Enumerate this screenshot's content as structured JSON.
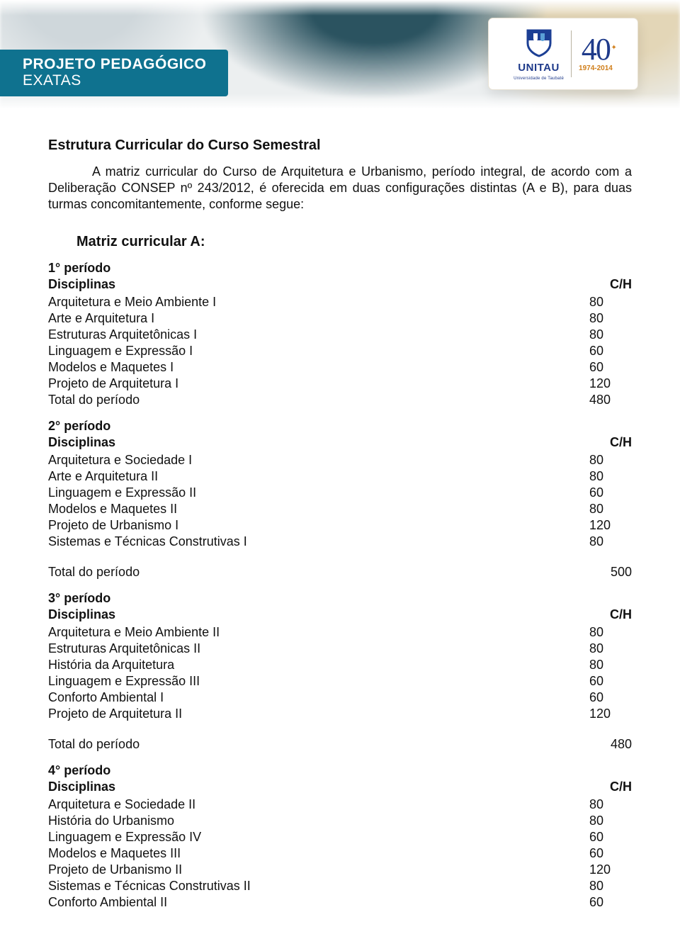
{
  "banner": {
    "title_line1": "PROJETO PEDAGÓGICO",
    "title_line2": "EXATAS",
    "title_bg": "#0f728f",
    "logo": {
      "word": "UNITAU",
      "sub": "Universidade de Taubaté",
      "shield_blue": "#1c3f94",
      "forty": "40",
      "years": "1974-2014",
      "accent": "#d07e1a"
    }
  },
  "doc": {
    "heading": "Estrutura Curricular do Curso Semestral",
    "paragraph": "A matriz curricular do Curso de Arquitetura e Urbanismo, período integral, de acordo com a Deliberação CONSEP nº 243/2012, é oferecida em duas configurações distintas (A e B), para duas turmas concomitantemente, conforme segue:",
    "matrix_title": "Matriz curricular A:",
    "col_label_disc": "Disciplinas",
    "col_label_ch": "C/H",
    "total_label": "Total do período",
    "periods": [
      {
        "title": "1° período",
        "rows": [
          {
            "name": "Arquitetura e Meio Ambiente I",
            "ch": "80"
          },
          {
            "name": "Arte e Arquitetura I",
            "ch": "80"
          },
          {
            "name": "Estruturas Arquitetônicas I",
            "ch": "80"
          },
          {
            "name": "Linguagem e Expressão I",
            "ch": "60"
          },
          {
            "name": "Modelos e Maquetes I",
            "ch": "60"
          },
          {
            "name": "Projeto de Arquitetura I",
            "ch": "120"
          }
        ],
        "total": "480",
        "total_inline": true
      },
      {
        "title": "2° período",
        "rows": [
          {
            "name": "Arquitetura e Sociedade I",
            "ch": "80"
          },
          {
            "name": "Arte e Arquitetura II",
            "ch": "80"
          },
          {
            "name": "Linguagem e Expressão II",
            "ch": "60"
          },
          {
            "name": "Modelos e Maquetes II",
            "ch": "80"
          },
          {
            "name": "Projeto de Urbanismo I",
            "ch": "120"
          },
          {
            "name": "Sistemas e Técnicas Construtivas I",
            "ch": "80"
          }
        ],
        "total": "500",
        "total_inline": false
      },
      {
        "title": "3° período",
        "rows": [
          {
            "name": "Arquitetura e Meio Ambiente II",
            "ch": "80"
          },
          {
            "name": "Estruturas Arquitetônicas II",
            "ch": "80"
          },
          {
            "name": "História da Arquitetura",
            "ch": "80"
          },
          {
            "name": "Linguagem e Expressão III",
            "ch": "60"
          },
          {
            "name": "Conforto Ambiental I",
            "ch": "60"
          },
          {
            "name": "Projeto de Arquitetura II",
            "ch": "120"
          }
        ],
        "total": "480",
        "total_inline": false
      },
      {
        "title": "4° período",
        "rows": [
          {
            "name": "Arquitetura e Sociedade II",
            "ch": "80"
          },
          {
            "name": "História do Urbanismo",
            "ch": "80"
          },
          {
            "name": "Linguagem e Expressão IV",
            "ch": "60"
          },
          {
            "name": "Modelos e Maquetes III",
            "ch": "60"
          },
          {
            "name": "Projeto de Urbanismo II",
            "ch": "120"
          },
          {
            "name": "Sistemas e Técnicas Construtivas II",
            "ch": "80"
          },
          {
            "name": "Conforto Ambiental II",
            "ch": "60"
          }
        ],
        "total": null,
        "total_inline": false
      }
    ]
  },
  "colors": {
    "text": "#111111",
    "banner_bg": "#eceff0"
  },
  "typography": {
    "body_family": "Arial",
    "body_size_pt": 13,
    "heading_size_pt": 15
  }
}
